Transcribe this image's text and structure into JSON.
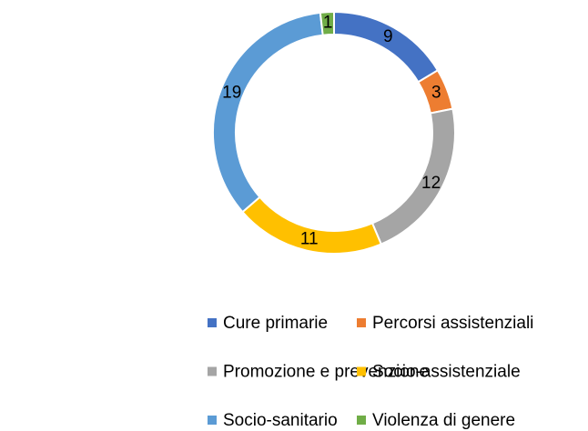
{
  "chart_data": {
    "type": "donut",
    "categories": [
      "Cure primarie",
      "Percorsi assistenziali",
      "Promozione e prevenzione",
      "Socio-assistenziale",
      "Socio-sanitario",
      "Violenza di genere"
    ],
    "values": [
      9,
      3,
      12,
      11,
      19,
      1
    ],
    "colors": [
      "#4472c4",
      "#ed7d31",
      "#a5a5a5",
      "#ffc000",
      "#5b9bd5",
      "#70ad47"
    ],
    "legend": "bottom"
  }
}
